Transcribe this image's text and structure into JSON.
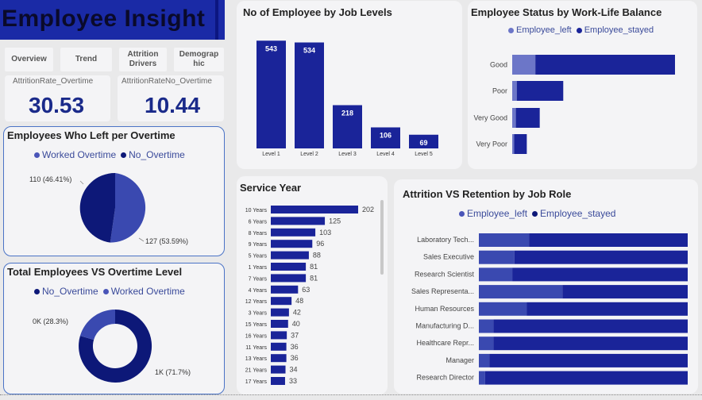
{
  "header": {
    "title": "Employee Insight"
  },
  "nav": [
    {
      "label": "Overview"
    },
    {
      "label": "Trend"
    },
    {
      "label": "Attrition Drivers"
    },
    {
      "label": "Demograp hic"
    }
  ],
  "kpis": [
    {
      "label": "AttritionRate_Overtime",
      "value": "30.53"
    },
    {
      "label": "AttritionRateNo_Overtime",
      "value": "10.44"
    }
  ],
  "colors": {
    "dark": "#1a2499",
    "light": "#4a55b8",
    "navy": "#0d1878",
    "mid": "#3a49b0"
  },
  "left_overtime": {
    "title": "Employees Who Left per Overtime",
    "legend": [
      "Worked Overtime",
      "No_Overtime"
    ],
    "labels": [
      "110 (46.41%)",
      "127 (53.59%)"
    ]
  },
  "total_overtime": {
    "title": "Total Employees VS Overtime Level",
    "legend": [
      "No_Overtime",
      "Worked Overtime"
    ],
    "labels": [
      "0K (28.3%)",
      "1K (71.7%)"
    ]
  },
  "chart_data": [
    {
      "type": "bar",
      "title": "No of Employee by Job Levels",
      "categories": [
        "Level 1",
        "Level 2",
        "Level 3",
        "Level 4",
        "Level 5"
      ],
      "values": [
        543,
        534,
        218,
        106,
        69
      ]
    },
    {
      "type": "bar",
      "title": "Employee Status by Work-Life Balance",
      "categories": [
        "Good",
        "Poor",
        "Very Good",
        "Very Poor"
      ],
      "series": [
        {
          "name": "Employee_left",
          "values": [
            127,
            25,
            20,
            11
          ]
        },
        {
          "name": "Employee_stayed",
          "values": [
            766,
            255,
            131,
            69
          ]
        }
      ]
    },
    {
      "type": "bar",
      "title": "Service Year",
      "categories": [
        "10 Years",
        "6 Years",
        "8 Years",
        "9 Years",
        "5 Years",
        "1 Years",
        "7 Years",
        "4 Years",
        "12 Years",
        "3 Years",
        "15 Years",
        "16 Years",
        "11 Years",
        "13 Years",
        "21 Years",
        "17 Years"
      ],
      "values": [
        202,
        125,
        103,
        96,
        88,
        81,
        81,
        63,
        48,
        42,
        40,
        37,
        36,
        36,
        34,
        33
      ]
    },
    {
      "type": "bar",
      "title": "Attrition VS Retention by Job Role",
      "categories": [
        "Laboratory Tech...",
        "Sales Executive",
        "Research Scientist",
        "Sales Representa...",
        "Human Resources",
        "Manufacturing D...",
        "Healthcare Repr...",
        "Manager",
        "Research Director"
      ],
      "series": [
        {
          "name": "Employee_left",
          "values": [
            24,
            17,
            16,
            40,
            23,
            7,
            7,
            5,
            3
          ]
        },
        {
          "name": "Employee_stayed",
          "values": [
            76,
            83,
            84,
            60,
            77,
            93,
            93,
            95,
            97
          ]
        }
      ]
    }
  ]
}
